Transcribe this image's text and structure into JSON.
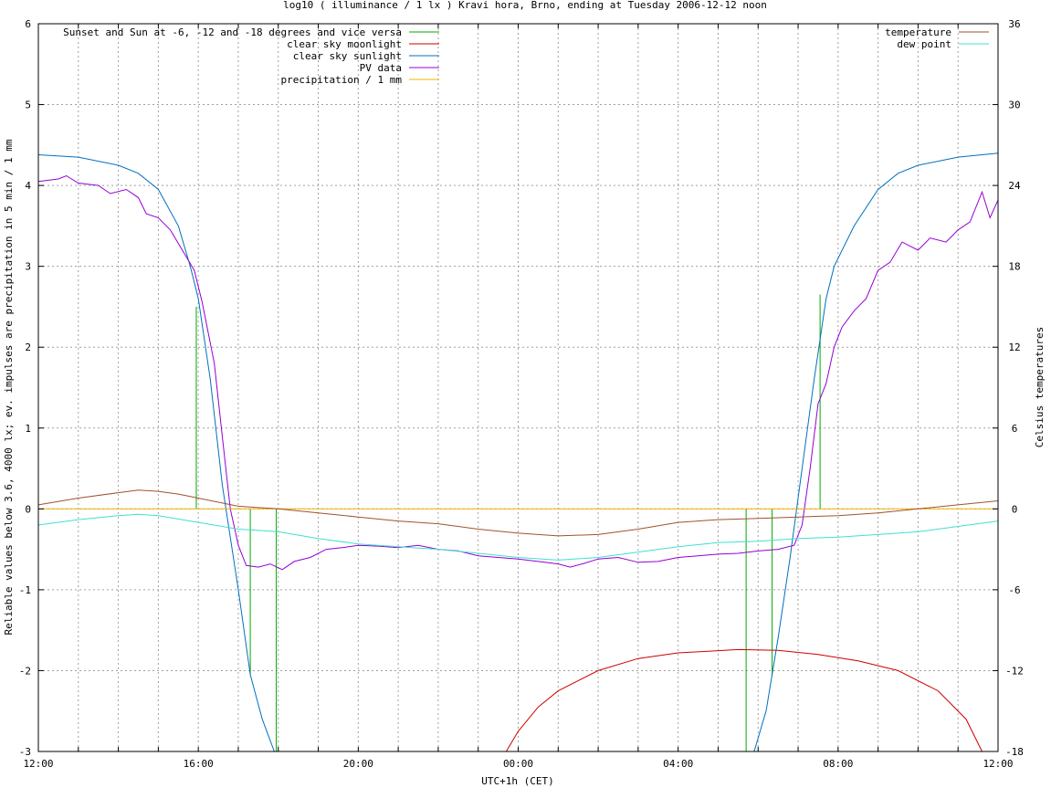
{
  "chart_data": {
    "type": "line",
    "title": "log10 ( illuminance / 1 lx ) Kravi hora, Brno, ending at Tuesday 2006-12-12 noon",
    "xlabel": "UTC+1h (CET)",
    "ylabel": "Reliable values below 3.6, 4000 lx; ev. impulses are precipitation in 5 min / 1 mm",
    "y2label": "Celsius temperatures",
    "x_hours_range": [
      12,
      36
    ],
    "ylim": [
      -3,
      6
    ],
    "y2lim": [
      -18,
      36
    ],
    "grid": true,
    "x_ticks": [
      {
        "h": 12,
        "label": "12:00"
      },
      {
        "h": 16,
        "label": "16:00"
      },
      {
        "h": 20,
        "label": "20:00"
      },
      {
        "h": 24,
        "label": "00:00"
      },
      {
        "h": 28,
        "label": "04:00"
      },
      {
        "h": 32,
        "label": "08:00"
      },
      {
        "h": 36,
        "label": "12:00"
      }
    ],
    "y_ticks": [
      "-3",
      "-2",
      "-1",
      "0",
      "1",
      "2",
      "3",
      "4",
      "5",
      "6"
    ],
    "y2_ticks": [
      "-18",
      "-12",
      "-6",
      "0",
      "6",
      "12",
      "18",
      "24",
      "30",
      "36"
    ],
    "legend_left": [
      {
        "name": "Sunset and Sun at -6, -12 and -18 degrees and vice versa",
        "color": "#00aa00"
      },
      {
        "name": "clear sky moonlight",
        "color": "#cc0000"
      },
      {
        "name": "clear sky sunlight",
        "color": "#0070c0"
      },
      {
        "name": "PV data",
        "color": "#9400d3"
      },
      {
        "name": "precipitation / 1 mm",
        "color": "#f0b400"
      }
    ],
    "legend_right": [
      {
        "name": "temperature",
        "color": "#a0522d"
      },
      {
        "name": "dew point",
        "color": "#40e0d0"
      }
    ],
    "series": [
      {
        "name": "Sunset and Sun at -6, -12 and -18 degrees and vice versa",
        "type": "impulse",
        "points": [
          [
            15.95,
            2.5
          ],
          [
            17.3,
            -2.05
          ],
          [
            17.95,
            -3.0
          ],
          [
            29.7,
            -3.0
          ],
          [
            30.35,
            -2.05
          ],
          [
            31.55,
            2.65
          ]
        ]
      },
      {
        "name": "clear sky moonlight",
        "points": [
          [
            23.7,
            -3.0
          ],
          [
            24.0,
            -2.75
          ],
          [
            24.5,
            -2.45
          ],
          [
            25,
            -2.25
          ],
          [
            26,
            -2.0
          ],
          [
            27,
            -1.85
          ],
          [
            28,
            -1.78
          ],
          [
            29.5,
            -1.74
          ],
          [
            30.5,
            -1.75
          ],
          [
            31.5,
            -1.8
          ],
          [
            32.5,
            -1.88
          ],
          [
            33.5,
            -2.0
          ],
          [
            34.5,
            -2.25
          ],
          [
            35.2,
            -2.6
          ],
          [
            35.6,
            -3.0
          ]
        ]
      },
      {
        "name": "clear sky sunlight",
        "points": [
          [
            12,
            4.38
          ],
          [
            13,
            4.35
          ],
          [
            14,
            4.25
          ],
          [
            14.5,
            4.15
          ],
          [
            15.0,
            3.95
          ],
          [
            15.5,
            3.5
          ],
          [
            15.8,
            3.0
          ],
          [
            16.0,
            2.6
          ],
          [
            16.3,
            1.6
          ],
          [
            16.6,
            0.3
          ],
          [
            17.0,
            -1.0
          ],
          [
            17.3,
            -2.05
          ],
          [
            17.6,
            -2.6
          ],
          [
            17.9,
            -3.0
          ],
          [
            29.9,
            -3.0
          ],
          [
            30.2,
            -2.5
          ],
          [
            30.5,
            -1.6
          ],
          [
            30.8,
            -0.6
          ],
          [
            31.1,
            0.5
          ],
          [
            31.4,
            1.6
          ],
          [
            31.7,
            2.6
          ],
          [
            31.9,
            3.0
          ],
          [
            32.4,
            3.5
          ],
          [
            33.0,
            3.95
          ],
          [
            33.5,
            4.15
          ],
          [
            34.0,
            4.25
          ],
          [
            35.0,
            4.35
          ],
          [
            36,
            4.4
          ]
        ]
      },
      {
        "name": "PV data",
        "points": [
          [
            12,
            4.05
          ],
          [
            12.5,
            4.08
          ],
          [
            12.7,
            4.12
          ],
          [
            13,
            4.03
          ],
          [
            13.5,
            4.0
          ],
          [
            13.8,
            3.9
          ],
          [
            14.2,
            3.95
          ],
          [
            14.5,
            3.85
          ],
          [
            14.7,
            3.65
          ],
          [
            15.0,
            3.6
          ],
          [
            15.3,
            3.45
          ],
          [
            15.6,
            3.2
          ],
          [
            15.9,
            2.95
          ],
          [
            16.1,
            2.55
          ],
          [
            16.4,
            1.8
          ],
          [
            16.6,
            0.9
          ],
          [
            16.8,
            0.0
          ],
          [
            17.0,
            -0.45
          ],
          [
            17.2,
            -0.7
          ],
          [
            17.5,
            -0.72
          ],
          [
            17.8,
            -0.68
          ],
          [
            18.1,
            -0.75
          ],
          [
            18.4,
            -0.65
          ],
          [
            18.8,
            -0.6
          ],
          [
            19.2,
            -0.5
          ],
          [
            19.6,
            -0.48
          ],
          [
            20.0,
            -0.45
          ],
          [
            20.5,
            -0.46
          ],
          [
            21.0,
            -0.48
          ],
          [
            21.5,
            -0.45
          ],
          [
            22.0,
            -0.5
          ],
          [
            22.5,
            -0.52
          ],
          [
            23.0,
            -0.58
          ],
          [
            23.5,
            -0.6
          ],
          [
            24.0,
            -0.62
          ],
          [
            24.5,
            -0.65
          ],
          [
            25.0,
            -0.68
          ],
          [
            25.3,
            -0.72
          ],
          [
            25.6,
            -0.68
          ],
          [
            26.0,
            -0.62
          ],
          [
            26.5,
            -0.6
          ],
          [
            27.0,
            -0.66
          ],
          [
            27.5,
            -0.65
          ],
          [
            28.0,
            -0.6
          ],
          [
            28.5,
            -0.58
          ],
          [
            29.0,
            -0.56
          ],
          [
            29.5,
            -0.55
          ],
          [
            30.0,
            -0.52
          ],
          [
            30.5,
            -0.5
          ],
          [
            30.9,
            -0.45
          ],
          [
            31.1,
            -0.2
          ],
          [
            31.3,
            0.5
          ],
          [
            31.5,
            1.3
          ],
          [
            31.7,
            1.55
          ],
          [
            31.9,
            2.0
          ],
          [
            32.1,
            2.25
          ],
          [
            32.4,
            2.45
          ],
          [
            32.7,
            2.6
          ],
          [
            33.0,
            2.95
          ],
          [
            33.3,
            3.05
          ],
          [
            33.6,
            3.3
          ],
          [
            34.0,
            3.2
          ],
          [
            34.3,
            3.35
          ],
          [
            34.7,
            3.3
          ],
          [
            35.0,
            3.45
          ],
          [
            35.3,
            3.55
          ],
          [
            35.6,
            3.92
          ],
          [
            35.8,
            3.6
          ],
          [
            36.0,
            3.82
          ]
        ]
      },
      {
        "name": "precipitation / 1 mm",
        "points": [
          [
            12,
            0.0
          ],
          [
            36,
            0.0
          ]
        ]
      },
      {
        "name": "temperature",
        "axis": "y2",
        "points": [
          [
            12,
            0.3
          ],
          [
            13,
            0.8
          ],
          [
            14,
            1.2
          ],
          [
            14.5,
            1.4
          ],
          [
            15.0,
            1.3
          ],
          [
            15.5,
            1.1
          ],
          [
            16.0,
            0.8
          ],
          [
            16.5,
            0.5
          ],
          [
            17.0,
            0.2
          ],
          [
            17.5,
            0.1
          ],
          [
            18.0,
            0.0
          ],
          [
            19.0,
            -0.3
          ],
          [
            20.0,
            -0.6
          ],
          [
            21.0,
            -0.9
          ],
          [
            22.0,
            -1.1
          ],
          [
            23.0,
            -1.5
          ],
          [
            24.0,
            -1.8
          ],
          [
            25.0,
            -2.0
          ],
          [
            26.0,
            -1.9
          ],
          [
            27.0,
            -1.5
          ],
          [
            28.0,
            -1.0
          ],
          [
            29.0,
            -0.8
          ],
          [
            30.0,
            -0.7
          ],
          [
            31.0,
            -0.6
          ],
          [
            32.0,
            -0.5
          ],
          [
            33.0,
            -0.3
          ],
          [
            34.0,
            0.0
          ],
          [
            35.0,
            0.3
          ],
          [
            36.0,
            0.6
          ]
        ]
      },
      {
        "name": "dew point",
        "axis": "y2",
        "points": [
          [
            12,
            -1.2
          ],
          [
            13,
            -0.8
          ],
          [
            14,
            -0.5
          ],
          [
            14.5,
            -0.4
          ],
          [
            15.0,
            -0.5
          ],
          [
            16.0,
            -1.0
          ],
          [
            17.0,
            -1.5
          ],
          [
            17.5,
            -1.6
          ],
          [
            18.0,
            -1.7
          ],
          [
            19.0,
            -2.2
          ],
          [
            20.0,
            -2.6
          ],
          [
            21.0,
            -2.8
          ],
          [
            22.0,
            -3.0
          ],
          [
            23.0,
            -3.3
          ],
          [
            24.0,
            -3.6
          ],
          [
            25.0,
            -3.8
          ],
          [
            26.0,
            -3.6
          ],
          [
            27.0,
            -3.2
          ],
          [
            28.0,
            -2.8
          ],
          [
            29.0,
            -2.5
          ],
          [
            30.0,
            -2.4
          ],
          [
            31.0,
            -2.2
          ],
          [
            32.0,
            -2.1
          ],
          [
            33.0,
            -1.9
          ],
          [
            34.0,
            -1.7
          ],
          [
            35.0,
            -1.3
          ],
          [
            36.0,
            -0.9
          ]
        ]
      }
    ]
  }
}
